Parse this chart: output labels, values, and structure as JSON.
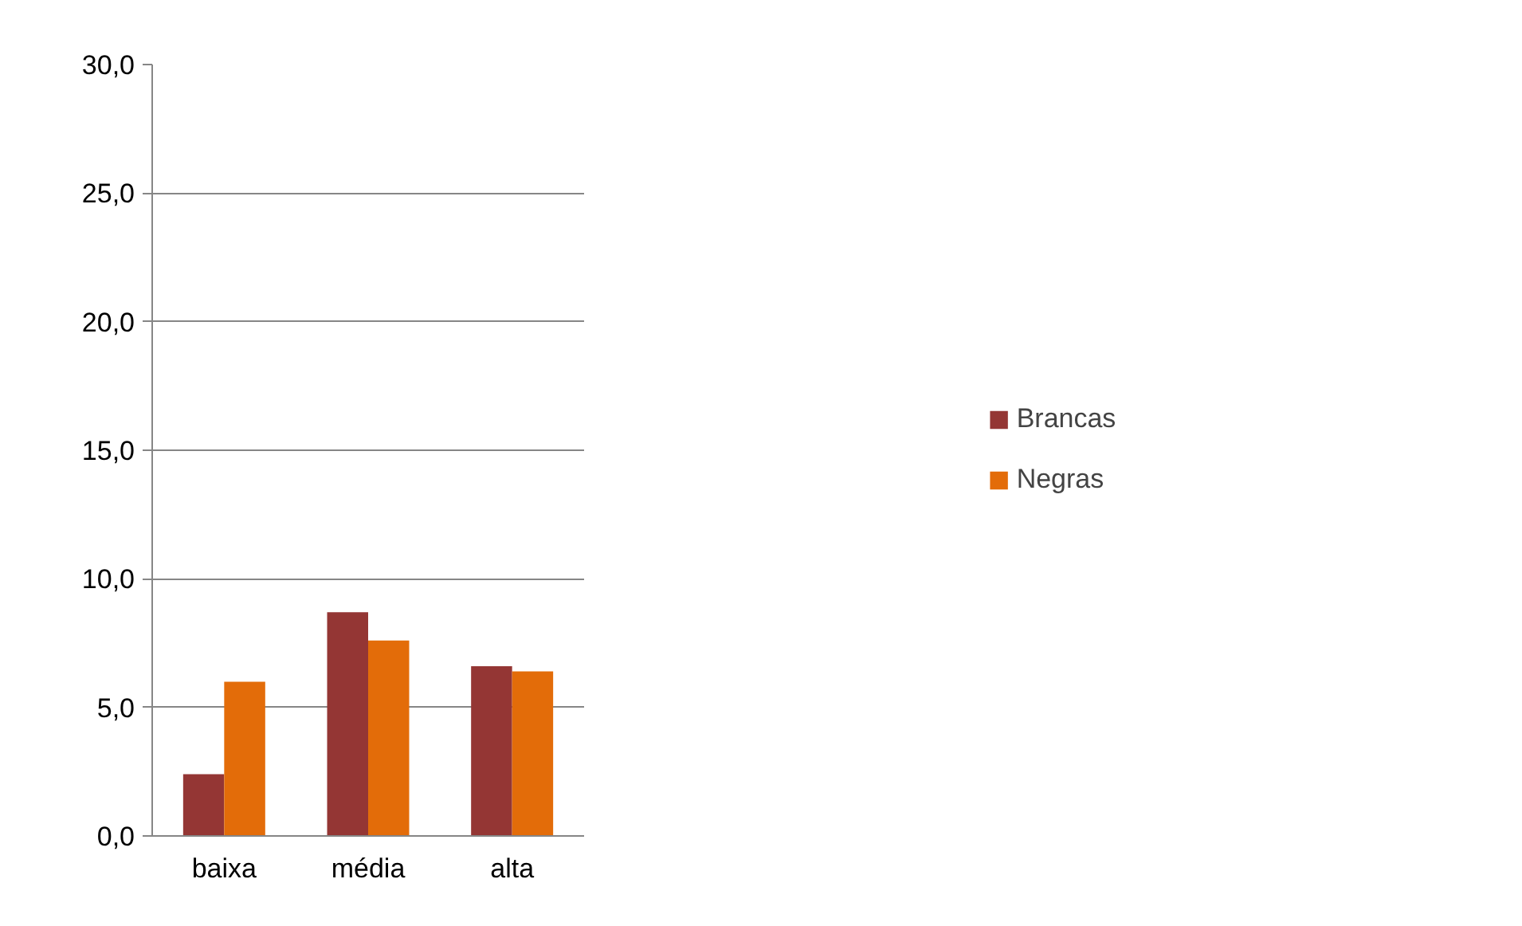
{
  "chart_data": {
    "type": "bar",
    "categories": [
      "baixa",
      "média",
      "alta"
    ],
    "series": [
      {
        "name": "Brancas",
        "color": "#943634",
        "values": [
          2.4,
          8.7,
          6.6
        ]
      },
      {
        "name": "Negras",
        "color": "#e36c09",
        "values": [
          6.0,
          7.6,
          6.4
        ]
      }
    ],
    "ylim": [
      0,
      30
    ],
    "yticks": [
      {
        "value": 0,
        "label": "0,0"
      },
      {
        "value": 5,
        "label": "5,0"
      },
      {
        "value": 10,
        "label": "10,0"
      },
      {
        "value": 15,
        "label": "15,0"
      },
      {
        "value": 20,
        "label": "20,0"
      },
      {
        "value": 25,
        "label": "25,0"
      },
      {
        "value": 30,
        "label": "30,0"
      }
    ],
    "grid": "y",
    "legend": "right"
  }
}
